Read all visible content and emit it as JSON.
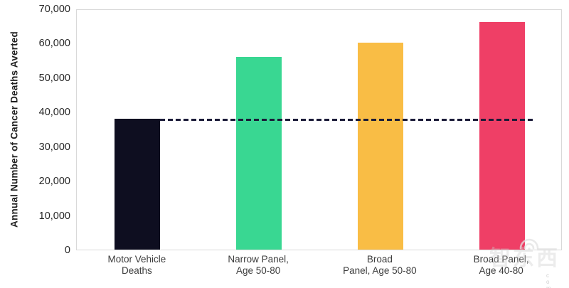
{
  "chart_data": {
    "type": "bar",
    "categories": [
      "Motor Vehicle\nDeaths",
      "Narrow Panel,\nAge 50-80",
      "Broad\nPanel, Age 50-80",
      "Broad Panel,\nAge 40-80"
    ],
    "values": [
      38000,
      56000,
      60000,
      66000
    ],
    "bar_colors": [
      "#0e0e20",
      "#39d792",
      "#f9bd45",
      "#ef3f66"
    ],
    "title": "",
    "xlabel": "",
    "ylabel": "Annual Number of Cancer Deaths Averted",
    "ylim": [
      0,
      70000
    ],
    "ytick_interval": 10000,
    "ytick_labels": [
      "0",
      "10,000",
      "20,000",
      "30,000",
      "40,000",
      "50,000",
      "60,000",
      "70,000"
    ],
    "grid": false,
    "legend": "none",
    "reference_line": {
      "value": 38000,
      "style": "dashed",
      "color": "#1b1b38"
    }
  },
  "watermark": {
    "text": "智东西",
    "subtext": "c o m"
  },
  "colors": {
    "plot_border": "#d9d9d9",
    "tick_label": "#262626",
    "category_label": "#3d3d3d",
    "background": "#ffffff"
  }
}
